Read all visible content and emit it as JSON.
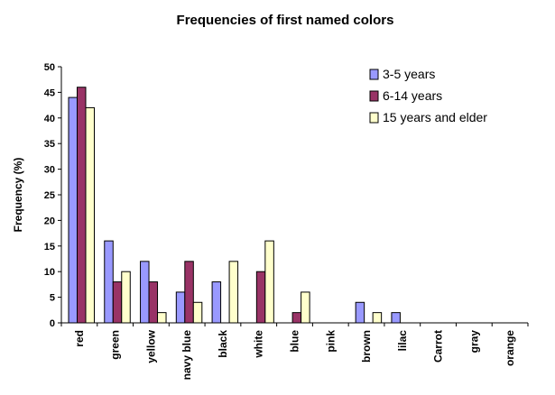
{
  "chart_data": {
    "type": "bar",
    "title": "Frequencies of first named  colors",
    "xlabel": "",
    "ylabel": "Frequency (%)",
    "ylim": [
      0,
      50
    ],
    "yticks": [
      0,
      5,
      10,
      15,
      20,
      25,
      30,
      35,
      40,
      45,
      50
    ],
    "grid": false,
    "legend_position": "top-right",
    "categories": [
      "red",
      "green",
      "yellow",
      "navy blue",
      "black",
      "white",
      "blue",
      "pink",
      "brown",
      "lilac",
      "Carrot",
      "gray",
      "orange"
    ],
    "series": [
      {
        "name": "3-5 years",
        "color": "#9999ff",
        "values": [
          44,
          16,
          12,
          6,
          8,
          0,
          0,
          0,
          4,
          2,
          0,
          0,
          0
        ]
      },
      {
        "name": "6-14 years",
        "color": "#993366",
        "values": [
          46,
          8,
          8,
          12,
          0,
          10,
          2,
          0,
          0,
          0,
          0,
          0,
          0
        ]
      },
      {
        "name": "15 years and elder",
        "color": "#ffffcc",
        "values": [
          42,
          10,
          2,
          4,
          12,
          16,
          6,
          0,
          2,
          0,
          0,
          0,
          0
        ]
      }
    ]
  }
}
